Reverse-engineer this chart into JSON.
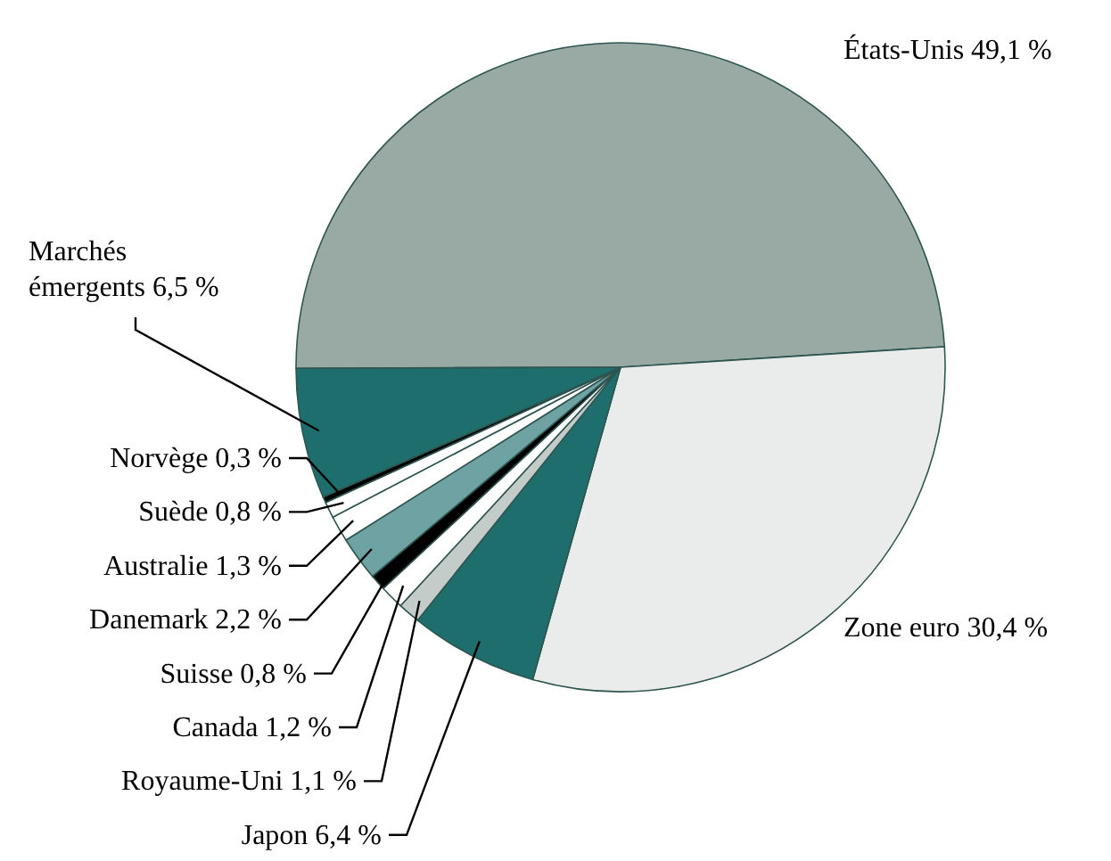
{
  "chart_data": {
    "type": "pie",
    "categories": [
      "États-Unis",
      "Zone euro",
      "Japon",
      "Royaume-Uni",
      "Canada",
      "Suisse",
      "Danemark",
      "Australie",
      "Suède",
      "Norvège",
      "Marchés émergents"
    ],
    "values": [
      49.1,
      30.4,
      6.4,
      1.1,
      1.2,
      0.8,
      2.2,
      1.3,
      0.8,
      0.3,
      6.5
    ],
    "colors": [
      "#98aaa3",
      "#e9eceb",
      "#1f6e6e",
      "#c3ccc9",
      "#ffffff",
      "#000000",
      "#6fa3a3",
      "#ffffff",
      "#ffffff",
      "#000000",
      "#1f6e6e"
    ],
    "value_labels": [
      "49,1 %",
      "30,4 %",
      "6,4 %",
      "1,1 %",
      "1,2 %",
      "0,8 %",
      "2,2 %",
      "1,3 %",
      "0,8 %",
      "0,3 %",
      "6,5 %"
    ]
  }
}
